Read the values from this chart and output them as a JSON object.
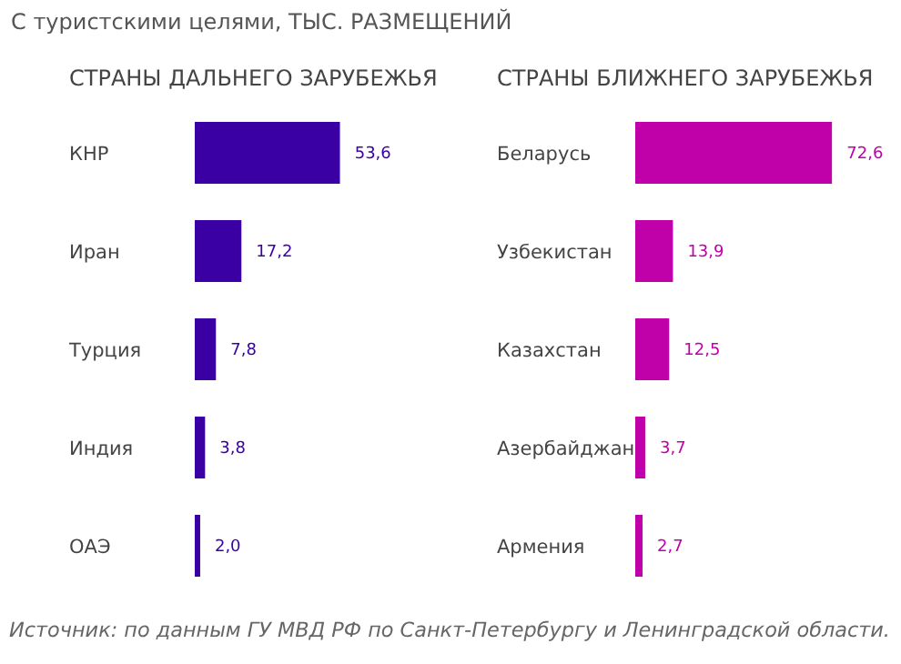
{
  "chart_data": [
    {
      "type": "bar",
      "orientation": "horizontal",
      "title": "С туристскими целями, ТЫС. РАЗМЕЩЕНИЙ",
      "subtitle": "СТРАНЫ ДАЛЬНЕГО ЗАРУБЕЖЬЯ",
      "annotations": [
        "Источник: по данным ГУ МВД РФ по Санкт-Петербургу и Ленинградской области."
      ],
      "categories": [
        "КНР",
        "Иран",
        "Турция",
        "Индия",
        "ОАЭ"
      ],
      "values": [
        53.6,
        17.2,
        7.8,
        3.8,
        2.0
      ],
      "value_labels": [
        "53,6",
        "17,2",
        "7,8",
        "3,8",
        "2,0"
      ],
      "color": "#3b00a3",
      "tick_labels": "y",
      "grid": false,
      "legend": false
    },
    {
      "type": "bar",
      "orientation": "horizontal",
      "subtitle": "СТРАНЫ БЛИЖНЕГО ЗАРУБЕЖЬЯ",
      "categories": [
        "Беларусь",
        "Узбекистан",
        "Казахстан",
        "Азербайджан",
        "Армения"
      ],
      "values": [
        72.6,
        13.9,
        12.5,
        3.7,
        2.7
      ],
      "value_labels": [
        "72,6",
        "13,9",
        "12,5",
        "3,7",
        "2,7"
      ],
      "color": "#c000a8",
      "tick_labels": "y",
      "grid": false,
      "legend": false
    }
  ]
}
